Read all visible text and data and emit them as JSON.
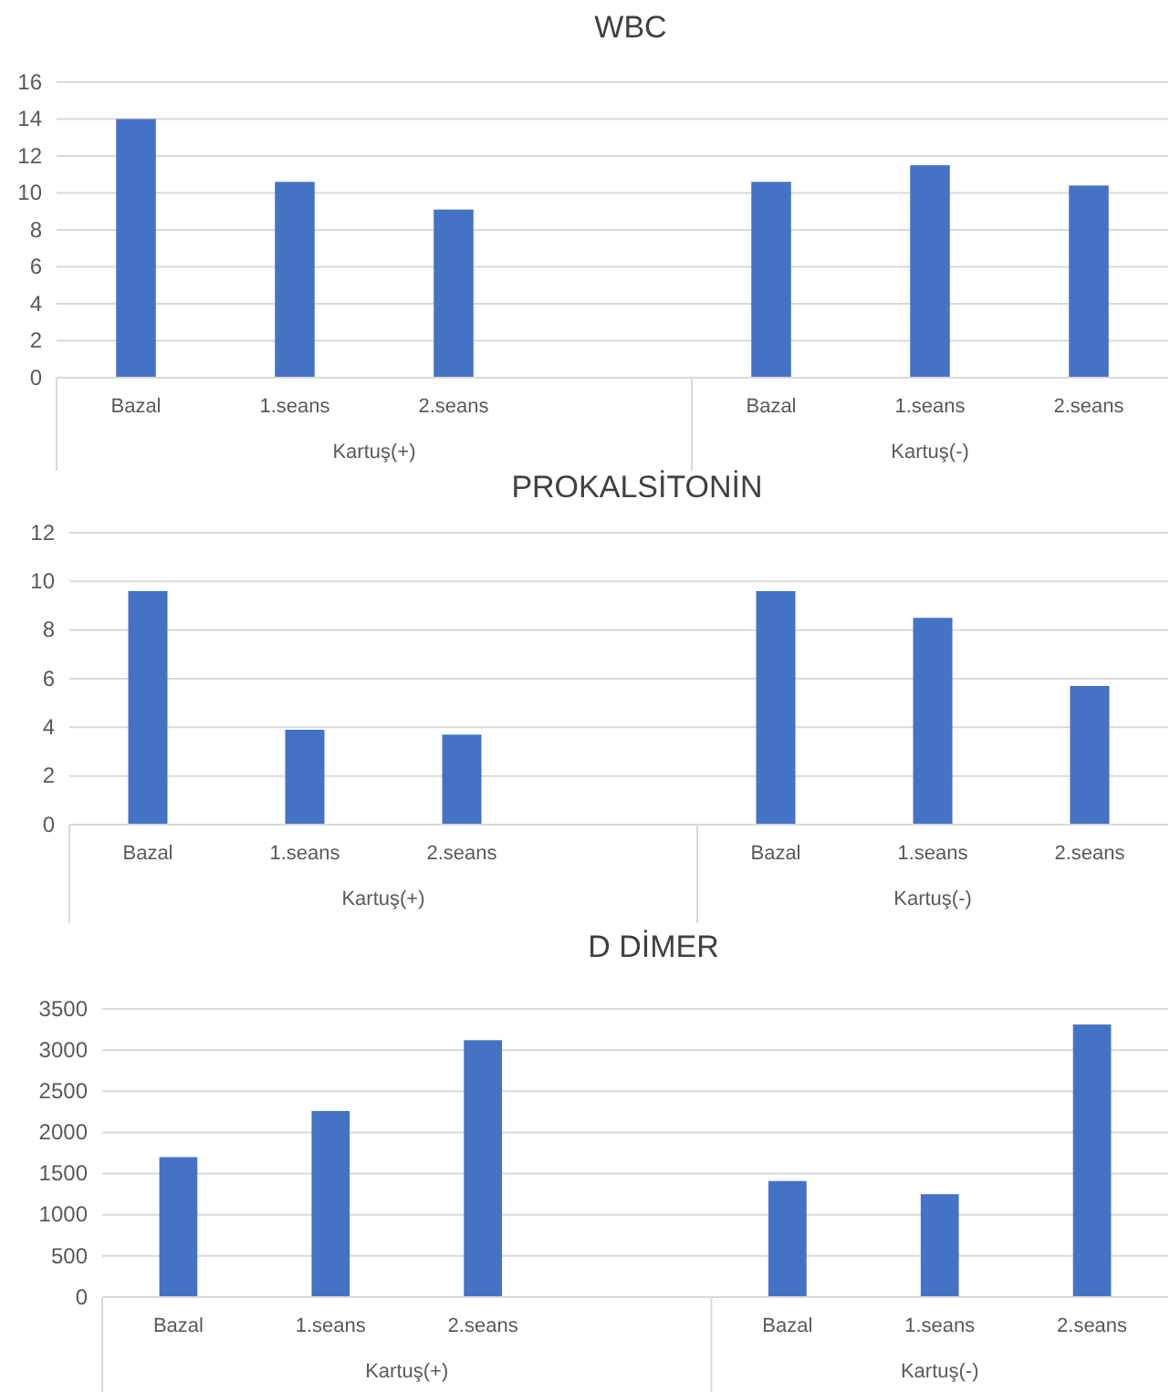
{
  "chart_data": [
    {
      "type": "bar",
      "title": "WBC",
      "categories": [
        "Bazal",
        "1.seans",
        "2.seans",
        null,
        "Bazal",
        "1.seans",
        "2.seans"
      ],
      "values": [
        14.0,
        10.6,
        9.1,
        null,
        10.6,
        11.5,
        10.4
      ],
      "color": "#4472c4",
      "ylim": [
        0,
        16
      ],
      "yticks": [
        0,
        2,
        4,
        6,
        8,
        10,
        12,
        14,
        16
      ],
      "grid": "y",
      "annotations": [
        "Kartuş(+)",
        "Kartuş(-)"
      ]
    },
    {
      "type": "bar",
      "title": "PROKALSİTONİN",
      "categories": [
        "Bazal",
        "1.seans",
        "2.seans",
        null,
        "Bazal",
        "1.seans",
        "2.seans"
      ],
      "values": [
        9.6,
        3.9,
        3.7,
        null,
        9.6,
        8.5,
        5.7
      ],
      "color": "#4472c4",
      "ylim": [
        0,
        12
      ],
      "yticks": [
        0,
        2,
        4,
        6,
        8,
        10,
        12
      ],
      "grid": "y",
      "annotations": [
        "Kartuş(+)",
        "Kartuş(-)"
      ]
    },
    {
      "type": "bar",
      "title": "D DİMER",
      "categories": [
        "Bazal",
        "1.seans",
        "2.seans",
        null,
        "Bazal",
        "1.seans",
        "2.seans"
      ],
      "values": [
        1700,
        2260,
        3120,
        null,
        1410,
        1250,
        3310
      ],
      "color": "#4472c4",
      "ylim": [
        0,
        3500
      ],
      "yticks": [
        0,
        500,
        1000,
        1500,
        2000,
        2500,
        3000,
        3500
      ],
      "grid": "y",
      "annotations": [
        "Kartuş(+)",
        "Kartuş(-)"
      ]
    }
  ]
}
